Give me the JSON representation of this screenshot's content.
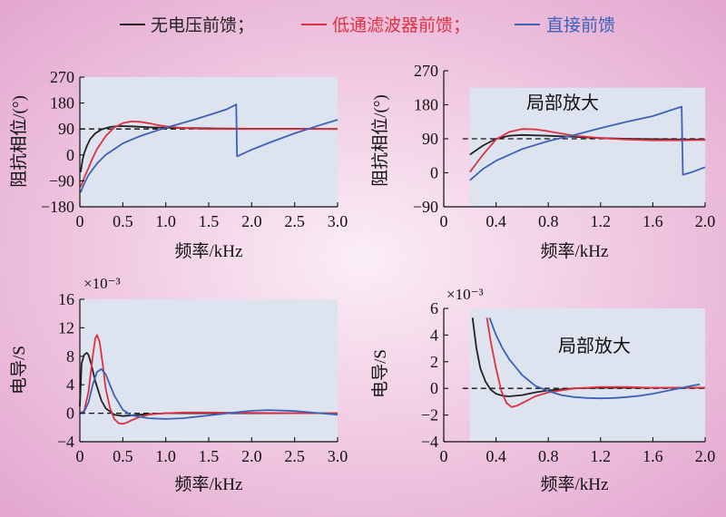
{
  "legend": [
    {
      "label": "无电压前馈；",
      "color": "#222222"
    },
    {
      "label": "低通滤波器前馈；",
      "color": "#e03040"
    },
    {
      "label": "直接前馈",
      "color": "#3b62b8"
    }
  ],
  "colors": {
    "none": "#222222",
    "lpf": "#e03040",
    "direct": "#3b62b8",
    "panel_bg": "#dde3ef"
  },
  "chart_data": [
    {
      "type": "line",
      "ylabel": "阻抗相位/(°)",
      "xlabel": "频率/kHz",
      "xlim": [
        0,
        3.0
      ],
      "ylim": [
        -180,
        270
      ],
      "xticks": [
        0,
        0.5,
        1.0,
        1.5,
        2.0,
        2.5,
        3.0
      ],
      "xtick_labels": [
        "0",
        "0.5",
        "1.0",
        "1.5",
        "2.0",
        "2.5",
        "3.0"
      ],
      "yticks": [
        -180,
        -90,
        0,
        90,
        180,
        270
      ],
      "ytick_labels": [
        "−180",
        "−90",
        "0",
        "90",
        "180",
        "270"
      ],
      "shade_x": [
        0,
        3.0
      ],
      "reference_line": 90,
      "annotation": "",
      "multiplier": "",
      "series": [
        {
          "key": "none",
          "x": [
            0.01,
            0.03,
            0.05,
            0.08,
            0.12,
            0.18,
            0.25,
            0.35,
            0.45,
            0.6,
            0.8,
            1.0,
            1.3,
            1.6,
            2.0,
            2.5,
            3.0
          ],
          "y": [
            -60,
            -20,
            5,
            30,
            55,
            75,
            88,
            97,
            100,
            99,
            96,
            94,
            93,
            92,
            91,
            91,
            90
          ]
        },
        {
          "key": "lpf",
          "x": [
            0.01,
            0.05,
            0.1,
            0.15,
            0.2,
            0.3,
            0.4,
            0.5,
            0.6,
            0.7,
            0.8,
            0.9,
            1.0,
            1.2,
            1.5,
            2.0,
            2.5,
            3.0
          ],
          "y": [
            -110,
            -80,
            -45,
            -10,
            20,
            65,
            95,
            110,
            116,
            115,
            110,
            104,
            99,
            93,
            90,
            90,
            90,
            90
          ]
        },
        {
          "key": "direct",
          "x": [
            0.01,
            0.05,
            0.1,
            0.2,
            0.3,
            0.5,
            0.7,
            0.9,
            1.1,
            1.3,
            1.5,
            1.7,
            1.82,
            1.83,
            2.0,
            2.2,
            2.5,
            2.8,
            3.0
          ],
          "y": [
            -130,
            -100,
            -70,
            -30,
            0,
            40,
            65,
            85,
            103,
            120,
            138,
            157,
            175,
            -5,
            18,
            42,
            75,
            104,
            122
          ]
        }
      ]
    },
    {
      "type": "line",
      "ylabel": "阻抗相位/(°)",
      "xlabel": "频率/kHz",
      "xlim": [
        0,
        2.0
      ],
      "ylim": [
        -90,
        270
      ],
      "xticks": [
        0,
        0.4,
        0.8,
        1.2,
        1.6,
        2.0
      ],
      "xtick_labels": [
        "0",
        "0.4",
        "0.8",
        "1.2",
        "1.6",
        "2.0"
      ],
      "yticks": [
        -90,
        0,
        90,
        180,
        270
      ],
      "ytick_labels": [
        "−90",
        "0",
        "90",
        "180",
        "270"
      ],
      "shade_x": [
        0.2,
        2.0
      ],
      "shade_y": [
        -90,
        225
      ],
      "reference_line": 90,
      "annotation": "局部放大",
      "multiplier": "",
      "series": [
        {
          "key": "none",
          "x": [
            0.2,
            0.3,
            0.4,
            0.5,
            0.6,
            0.8,
            1.0,
            1.2,
            1.4,
            1.6,
            1.8,
            2.0
          ],
          "y": [
            48,
            72,
            90,
            98,
            100,
            98,
            95,
            92,
            90,
            89,
            88,
            88
          ]
        },
        {
          "key": "lpf",
          "x": [
            0.2,
            0.3,
            0.4,
            0.5,
            0.6,
            0.7,
            0.8,
            0.9,
            1.0,
            1.2,
            1.4,
            1.6,
            1.8,
            2.0
          ],
          "y": [
            2,
            48,
            88,
            108,
            116,
            115,
            110,
            104,
            98,
            92,
            88,
            86,
            86,
            87
          ]
        },
        {
          "key": "direct",
          "x": [
            0.2,
            0.3,
            0.4,
            0.6,
            0.8,
            1.0,
            1.2,
            1.4,
            1.6,
            1.82,
            1.83,
            1.9,
            2.0
          ],
          "y": [
            -20,
            10,
            32,
            63,
            84,
            100,
            118,
            135,
            150,
            175,
            -5,
            2,
            15
          ]
        }
      ]
    },
    {
      "type": "line",
      "ylabel": "电导/S",
      "xlabel": "频率/kHz",
      "xlim": [
        0,
        3.0
      ],
      "ylim": [
        -4,
        16
      ],
      "xticks": [
        0,
        0.5,
        1.0,
        1.5,
        2.0,
        2.5,
        3.0
      ],
      "xtick_labels": [
        "0",
        "0.5",
        "1.0",
        "1.5",
        "2.0",
        "2.5",
        "3.0"
      ],
      "yticks": [
        -4,
        0,
        4,
        8,
        12,
        16
      ],
      "ytick_labels": [
        "−4",
        "0",
        "4",
        "8",
        "12",
        "16"
      ],
      "shade_x": [
        0,
        3.0
      ],
      "reference_line": 0,
      "annotation": "",
      "multiplier": "×10⁻³",
      "series": [
        {
          "key": "none",
          "x": [
            0,
            0.02,
            0.05,
            0.08,
            0.1,
            0.13,
            0.18,
            0.25,
            0.3,
            0.4,
            0.5,
            0.7,
            1.0,
            1.5,
            2.0,
            3.0
          ],
          "y": [
            1,
            7,
            8.2,
            8.5,
            8.2,
            7,
            4.5,
            1.8,
            0.7,
            -0.2,
            -0.4,
            -0.2,
            0,
            0,
            0,
            0
          ]
        },
        {
          "key": "lpf",
          "x": [
            0,
            0.05,
            0.1,
            0.15,
            0.18,
            0.2,
            0.23,
            0.27,
            0.3,
            0.35,
            0.4,
            0.45,
            0.5,
            0.55,
            0.6,
            0.7,
            0.8,
            0.9,
            1.0,
            1.2,
            1.5,
            2.0,
            2.5,
            3.0
          ],
          "y": [
            0,
            0.3,
            3,
            8,
            10.5,
            11,
            10,
            6.5,
            3.5,
            0.8,
            -0.8,
            -1.4,
            -1.5,
            -1.3,
            -1,
            -0.5,
            -0.2,
            -0.05,
            0,
            0.1,
            0.1,
            0.05,
            0,
            0
          ]
        },
        {
          "key": "direct",
          "x": [
            0,
            0.05,
            0.1,
            0.15,
            0.2,
            0.25,
            0.3,
            0.35,
            0.4,
            0.5,
            0.6,
            0.8,
            1.0,
            1.2,
            1.5,
            1.8,
            2.0,
            2.2,
            2.5,
            2.8,
            3.0
          ],
          "y": [
            0,
            0.2,
            1.5,
            4,
            5.8,
            6.2,
            5.5,
            4,
            2.5,
            0.5,
            -0.3,
            -0.7,
            -0.8,
            -0.7,
            -0.3,
            0.1,
            0.35,
            0.45,
            0.3,
            0,
            -0.2
          ]
        }
      ]
    },
    {
      "type": "line",
      "ylabel": "电导/S",
      "xlabel": "频率/kHz",
      "xlim": [
        0,
        2.0
      ],
      "ylim": [
        -4,
        6
      ],
      "xticks": [
        0,
        0.4,
        0.8,
        1.2,
        1.6,
        2.0
      ],
      "xtick_labels": [
        "0",
        "0.4",
        "0.8",
        "1.2",
        "1.6",
        "2.0"
      ],
      "yticks": [
        -4,
        -2,
        0,
        2,
        4,
        6
      ],
      "ytick_labels": [
        "−4",
        "−2",
        "0",
        "2",
        "4",
        "6"
      ],
      "shade_x": [
        0.2,
        2.0
      ],
      "shade_y": [
        -4,
        6
      ],
      "reference_line": 0,
      "annotation": "局部放大",
      "multiplier": "×10⁻³",
      "series": [
        {
          "key": "none",
          "x": [
            0.22,
            0.25,
            0.28,
            0.32,
            0.36,
            0.4,
            0.45,
            0.5,
            0.6,
            0.7,
            0.8,
            1.0,
            1.2,
            1.6,
            2.0
          ],
          "y": [
            5.3,
            3,
            1.5,
            0.5,
            -0.1,
            -0.4,
            -0.55,
            -0.6,
            -0.5,
            -0.3,
            -0.15,
            0,
            0.05,
            0.05,
            0.05
          ]
        },
        {
          "key": "lpf",
          "x": [
            0.33,
            0.36,
            0.4,
            0.44,
            0.48,
            0.52,
            0.56,
            0.6,
            0.7,
            0.8,
            1.0,
            1.2,
            1.4,
            1.6,
            2.0
          ],
          "y": [
            5.3,
            3.5,
            1.5,
            -0.2,
            -1.1,
            -1.4,
            -1.3,
            -1.1,
            -0.6,
            -0.3,
            0,
            0.1,
            0.1,
            0.05,
            0.05
          ]
        },
        {
          "key": "direct",
          "x": [
            0.35,
            0.4,
            0.45,
            0.5,
            0.6,
            0.7,
            0.8,
            0.9,
            1.0,
            1.1,
            1.2,
            1.3,
            1.4,
            1.5,
            1.6,
            1.7,
            1.8,
            1.9,
            1.96
          ],
          "y": [
            5.3,
            4,
            3,
            2.2,
            1,
            0.2,
            -0.2,
            -0.5,
            -0.65,
            -0.72,
            -0.75,
            -0.72,
            -0.65,
            -0.55,
            -0.4,
            -0.2,
            0,
            0.2,
            0.3
          ]
        }
      ]
    }
  ]
}
